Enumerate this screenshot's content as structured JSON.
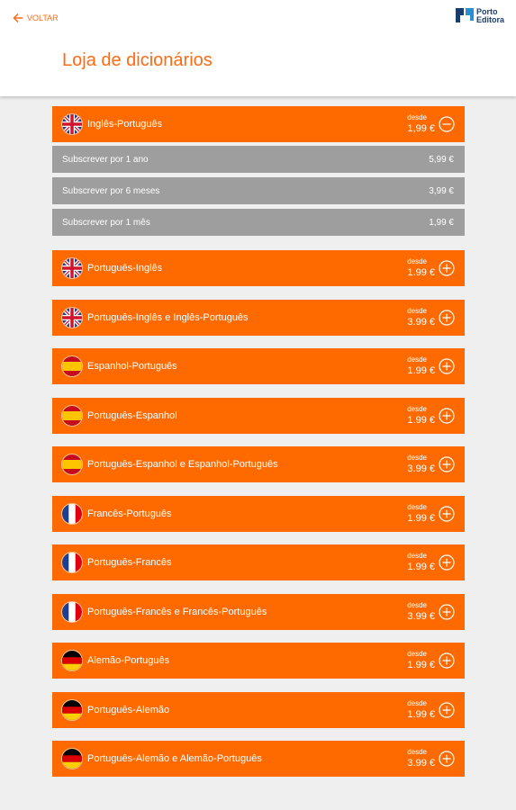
{
  "header": {
    "back": "VOLTAR",
    "logo": [
      "Porto",
      "Editora"
    ],
    "title": "Loja de dicionários"
  },
  "items": [
    {
      "name": "Inglês-Português",
      "from": "desde",
      "price": "1,99 €",
      "flag": "gb",
      "expanded": true,
      "options": [
        {
          "name": "Subscrever por 1 ano",
          "price": "5,99 €"
        },
        {
          "name": "Subscrever por 6 meses",
          "price": "3,99 €"
        },
        {
          "name": "Subscrever por 1 mês",
          "price": "1,99 €"
        }
      ]
    },
    {
      "name": "Português-Inglês",
      "from": "desde",
      "price": "1.99 €",
      "flag": "gb"
    },
    {
      "name": "Português-Inglês e Inglês-Português",
      "from": "desde",
      "price": "3.99 €",
      "flag": "gb"
    },
    {
      "name": "Espanhol-Português",
      "from": "desde",
      "price": "1.99 €",
      "flag": "es"
    },
    {
      "name": "Português-Espanhol",
      "from": "desde",
      "price": "1.99 €",
      "flag": "es"
    },
    {
      "name": "Português-Espanhol e Espanhol-Português",
      "from": "desde",
      "price": "3.99 €",
      "flag": "es"
    },
    {
      "name": "Francês-Português",
      "from": "desde",
      "price": "1.99 €",
      "flag": "fr"
    },
    {
      "name": "Português-Francês",
      "from": "desde",
      "price": "1.99 €",
      "flag": "fr"
    },
    {
      "name": "Português-Francês e Francês-Português",
      "from": "desde",
      "price": "3.99 €",
      "flag": "fr"
    },
    {
      "name": "Alemão-Português",
      "from": "desde",
      "price": "1.99 €",
      "flag": "de"
    },
    {
      "name": "Português-Alemão",
      "from": "desde",
      "price": "1.99 €",
      "flag": "de"
    },
    {
      "name": "Português-Alemão e Alemão-Português",
      "from": "desde",
      "price": "3.99 €",
      "flag": "de"
    }
  ]
}
